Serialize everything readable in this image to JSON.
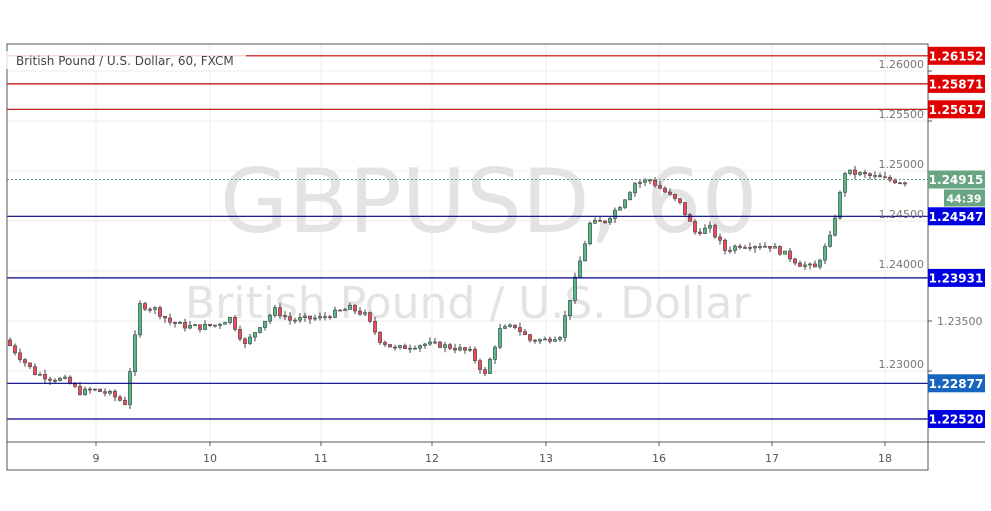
{
  "header": {
    "title": "British Pound / U.S. Dollar, 60, FXCM"
  },
  "watermark": {
    "symbol": "GBPUSD, 60",
    "name": "British Pound / U.S. Dollar"
  },
  "colors": {
    "up": "#53b987",
    "down": "#eb4d5c",
    "resistance": "#e00000",
    "support": "#0000e0",
    "support_alt": "#1565c0",
    "current": "#6aa583"
  },
  "chart_data": {
    "type": "candlestick",
    "title": "British Pound / U.S. Dollar, 60, FXCM",
    "ylim": [
      1.2215,
      1.264
    ],
    "y_ticks": [
      "1.26000",
      "1.25500",
      "1.25000",
      "1.24500",
      "1.24000",
      "1.23500",
      "1.23000"
    ],
    "x_ticks": [
      "9",
      "10",
      "11",
      "12",
      "13",
      "16",
      "17",
      "18"
    ],
    "grid": true,
    "closes": [
      1.2331,
      1.2314,
      1.2298,
      1.2293,
      1.2291,
      1.2279,
      1.2281,
      1.2277,
      1.2268,
      1.2366,
      1.2362,
      1.2349,
      1.2345,
      1.2344,
      1.2346,
      1.2353,
      1.2326,
      1.2346,
      1.2361,
      1.2351,
      1.2352,
      1.2353,
      1.2358,
      1.2363,
      1.2356,
      1.2331,
      1.2322,
      1.2325,
      1.2327,
      1.2326,
      1.2323,
      1.2319,
      1.2296,
      1.2341,
      1.2345,
      1.2331,
      1.2331,
      1.2336,
      1.2391,
      1.2447,
      1.245,
      1.2466,
      1.2488,
      1.2491,
      1.2479,
      1.2467,
      1.2439,
      1.2443,
      1.2421,
      1.2426,
      1.2426,
      1.2425,
      1.2417,
      1.2407,
      1.2403,
      1.2433,
      1.2499,
      1.2497,
      1.2494,
      1.2491,
      1.2489
    ],
    "levels": [
      {
        "price": "1.26152",
        "kind": "resistance"
      },
      {
        "price": "1.25871",
        "kind": "resistance"
      },
      {
        "price": "1.25617",
        "kind": "resistance"
      },
      {
        "price": "1.24547",
        "kind": "support"
      },
      {
        "price": "1.23931",
        "kind": "support"
      },
      {
        "price": "1.22877",
        "kind": "support_alt"
      },
      {
        "price": "1.22520",
        "kind": "support"
      }
    ],
    "current_price": "1.24915",
    "countdown": "44:39"
  }
}
